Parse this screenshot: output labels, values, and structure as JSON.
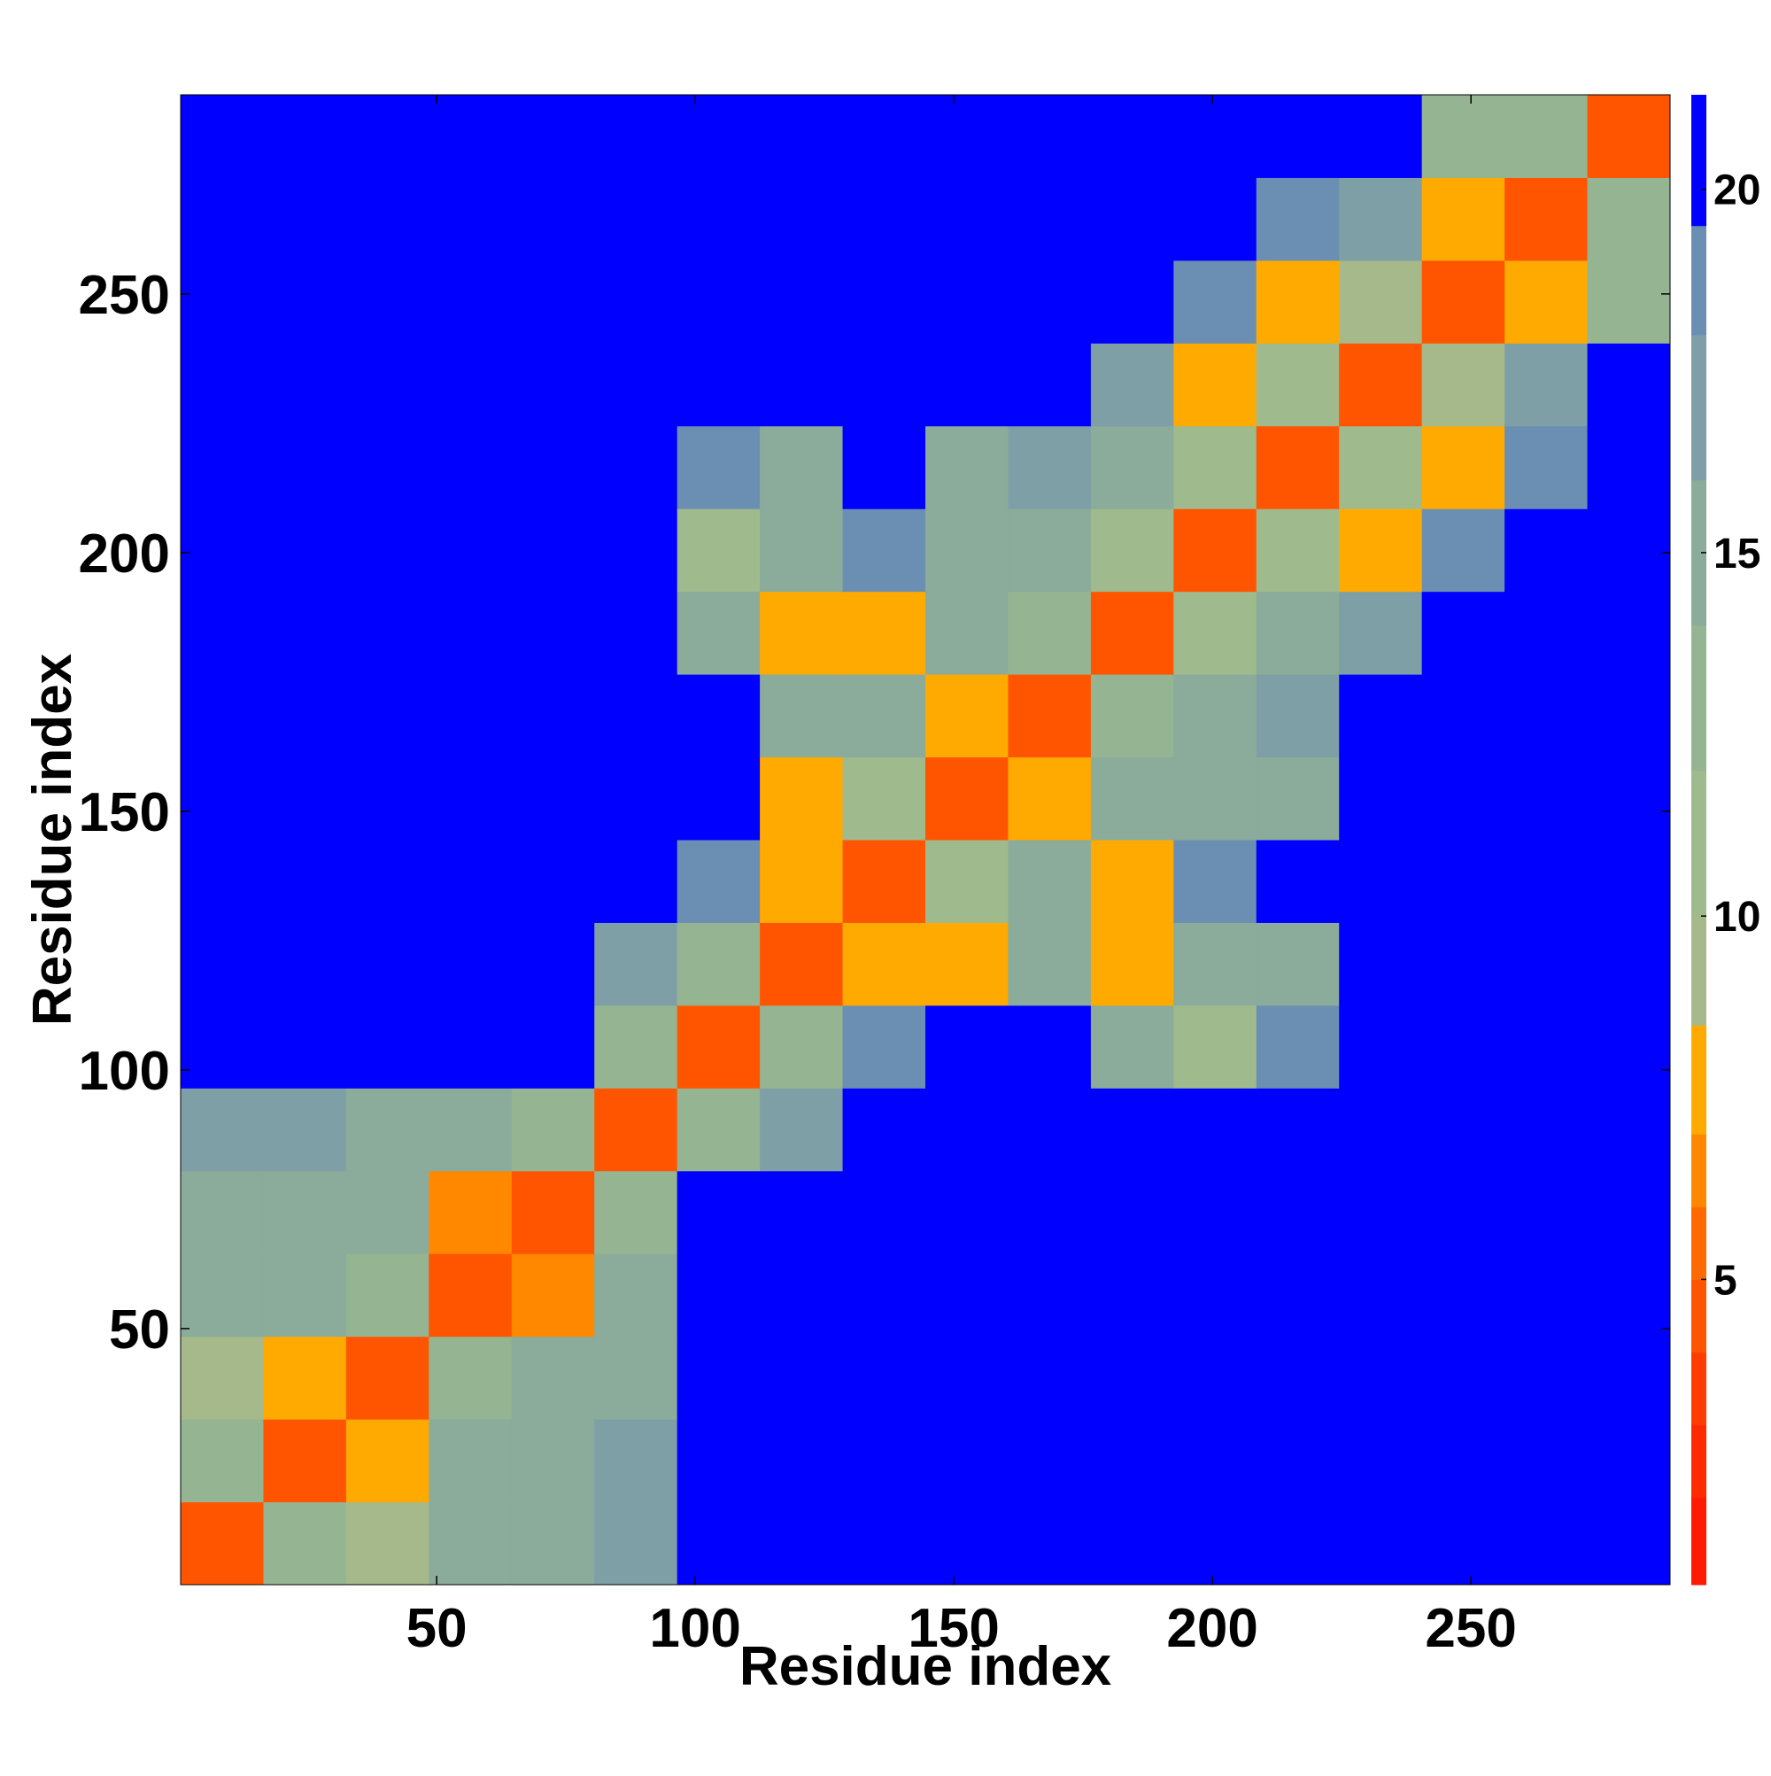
{
  "chart_data": {
    "type": "heatmap",
    "x_label": "Residue index",
    "y_label": "Residue index",
    "bins": [
      0.5,
      16.5,
      32.5,
      48.5,
      64.5,
      80.5,
      96.5,
      112.5,
      128.5,
      144.5,
      160.5,
      176.5,
      192.5,
      208.5,
      224.5,
      240.5,
      256.5,
      272.5,
      288.5
    ],
    "xlim": [
      0.5,
      288.5
    ],
    "ylim": [
      0.5,
      288.5
    ],
    "xticks": [
      50,
      100,
      150,
      200,
      250
    ],
    "yticks": [
      50,
      100,
      150,
      200,
      250
    ],
    "z": [
      [
        4,
        12,
        9,
        14,
        15,
        16,
        21,
        21,
        21,
        21,
        21,
        21,
        21,
        21,
        21,
        21,
        21,
        21
      ],
      [
        12,
        4,
        7,
        14,
        14,
        16,
        21,
        21,
        21,
        21,
        21,
        21,
        21,
        21,
        21,
        21,
        21,
        21
      ],
      [
        9,
        7,
        4,
        12,
        14,
        15,
        21,
        21,
        21,
        21,
        21,
        21,
        21,
        21,
        21,
        21,
        21,
        21
      ],
      [
        14,
        14,
        12,
        4,
        6,
        15,
        21,
        21,
        21,
        21,
        21,
        21,
        21,
        21,
        21,
        21,
        21,
        21
      ],
      [
        15,
        14,
        14,
        6,
        4,
        12,
        21,
        21,
        21,
        21,
        21,
        21,
        21,
        21,
        21,
        21,
        21,
        21
      ],
      [
        16,
        16,
        15,
        15,
        12,
        4,
        12,
        17,
        21,
        21,
        21,
        21,
        21,
        21,
        21,
        21,
        21,
        21
      ],
      [
        21,
        21,
        21,
        21,
        21,
        12,
        4,
        12,
        18,
        21,
        21,
        15,
        10,
        18,
        21,
        21,
        21,
        21
      ],
      [
        21,
        21,
        21,
        21,
        21,
        17,
        12,
        4,
        7,
        7,
        15,
        8,
        14,
        15,
        21,
        21,
        21,
        21
      ],
      [
        21,
        21,
        21,
        21,
        21,
        21,
        18,
        7,
        4,
        11,
        14,
        8,
        19,
        21,
        21,
        21,
        21,
        21
      ],
      [
        21,
        21,
        21,
        21,
        21,
        21,
        21,
        7,
        11,
        4,
        7,
        14,
        15,
        15,
        21,
        21,
        21,
        21
      ],
      [
        21,
        21,
        21,
        21,
        21,
        21,
        21,
        15,
        14,
        7,
        4,
        12,
        14,
        17,
        21,
        21,
        21,
        21
      ],
      [
        21,
        21,
        21,
        21,
        21,
        21,
        15,
        8,
        8,
        14,
        12,
        4,
        11,
        14,
        17,
        21,
        21,
        21
      ],
      [
        21,
        21,
        21,
        21,
        21,
        21,
        10,
        14,
        19,
        15,
        14,
        11,
        4,
        10,
        7,
        19,
        21,
        21
      ],
      [
        21,
        21,
        21,
        21,
        21,
        21,
        18,
        15,
        21,
        15,
        17,
        14,
        10,
        4,
        10,
        8,
        19,
        21
      ],
      [
        21,
        21,
        21,
        21,
        21,
        21,
        21,
        21,
        21,
        21,
        21,
        17,
        7,
        10,
        4,
        9,
        16,
        21
      ],
      [
        21,
        21,
        21,
        21,
        21,
        21,
        21,
        21,
        21,
        21,
        21,
        21,
        19,
        8,
        9,
        4,
        7,
        13
      ],
      [
        21,
        21,
        21,
        21,
        21,
        21,
        21,
        21,
        21,
        21,
        21,
        21,
        21,
        19,
        16,
        7,
        4,
        12
      ],
      [
        21,
        21,
        21,
        21,
        21,
        21,
        21,
        21,
        21,
        21,
        21,
        21,
        21,
        21,
        21,
        13,
        12,
        4
      ]
    ],
    "colorbar": {
      "lim": [
        0.8,
        21.3
      ],
      "ticks": [
        5,
        10,
        15,
        20
      ],
      "bounds": [
        0.8,
        2,
        3,
        4,
        5,
        6,
        7,
        8.5,
        10,
        12,
        14,
        16,
        18,
        19.5,
        21.3
      ],
      "colors": [
        "#ff1a00",
        "#ff2a00",
        "#ff3d00",
        "#ff5500",
        "#ff6a00",
        "#ff8800",
        "#ffaa00",
        "#a6b98a",
        "#9fba8c",
        "#95b592",
        "#8bab9b",
        "#7f9fa6",
        "#6b8fb3",
        "#0000ff"
      ]
    }
  }
}
